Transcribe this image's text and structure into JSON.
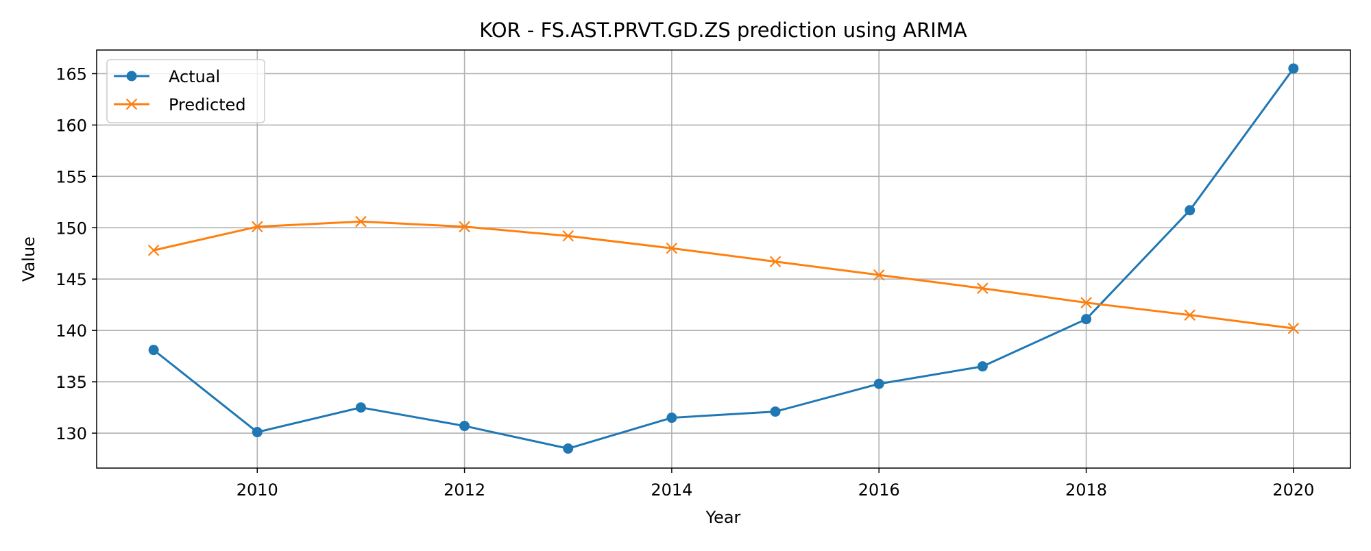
{
  "chart_data": {
    "type": "line",
    "title": "KOR - FS.AST.PRVT.GD.ZS prediction using ARIMA",
    "xlabel": "Year",
    "ylabel": "Value",
    "x": [
      2009,
      2010,
      2011,
      2012,
      2013,
      2014,
      2015,
      2016,
      2017,
      2018,
      2019,
      2020
    ],
    "series": [
      {
        "name": "Actual",
        "color": "#1f77b4",
        "marker": "circle",
        "values": [
          138.1,
          130.1,
          132.5,
          130.7,
          128.5,
          131.5,
          132.1,
          134.8,
          136.5,
          141.1,
          151.7,
          165.5
        ]
      },
      {
        "name": "Predicted",
        "color": "#ff7f0e",
        "marker": "x",
        "values": [
          147.8,
          150.1,
          150.6,
          150.1,
          149.2,
          148.0,
          146.7,
          145.4,
          144.1,
          142.7,
          141.5,
          140.2
        ]
      }
    ],
    "xlim": [
      2008.45,
      2020.55
    ],
    "ylim": [
      126.6,
      167.3
    ],
    "xticks": [
      2010,
      2012,
      2014,
      2016,
      2018,
      2020
    ],
    "yticks": [
      130,
      135,
      140,
      145,
      150,
      155,
      160,
      165
    ],
    "grid": true,
    "legend_position": "upper left"
  }
}
